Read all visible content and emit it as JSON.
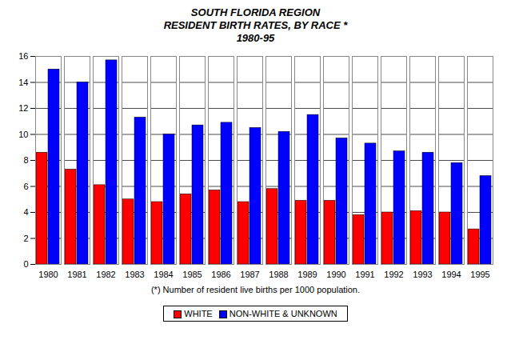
{
  "chart_data": {
    "type": "bar",
    "title": "SOUTH FLORIDA REGION\nRESIDENT BIRTH RATES, BY RACE *\n1980-95",
    "xlabel": "(*) Number of resident live births per 1000 population.",
    "categories": [
      "1980",
      "1981",
      "1982",
      "1983",
      "1984",
      "1985",
      "1986",
      "1987",
      "1988",
      "1989",
      "1990",
      "1991",
      "1992",
      "1993",
      "1994",
      "1995"
    ],
    "series": [
      {
        "name": "WHITE",
        "color": "#ff0000",
        "values": [
          8.6,
          7.3,
          6.1,
          5.0,
          4.8,
          5.4,
          5.7,
          4.8,
          5.8,
          4.9,
          4.9,
          3.8,
          4.0,
          4.1,
          4.0,
          2.7
        ]
      },
      {
        "name": "NON-WHITE & UNKNOWN",
        "color": "#0000ff",
        "values": [
          15.0,
          14.0,
          15.7,
          11.3,
          10.0,
          10.7,
          10.9,
          10.5,
          10.2,
          11.5,
          9.7,
          9.3,
          8.7,
          8.6,
          7.8,
          6.8
        ]
      }
    ],
    "ylim": [
      0,
      16
    ],
    "yticks": [
      0,
      2,
      4,
      6,
      8,
      10,
      12,
      14,
      16
    ],
    "grid": true,
    "legend": "bottom"
  }
}
